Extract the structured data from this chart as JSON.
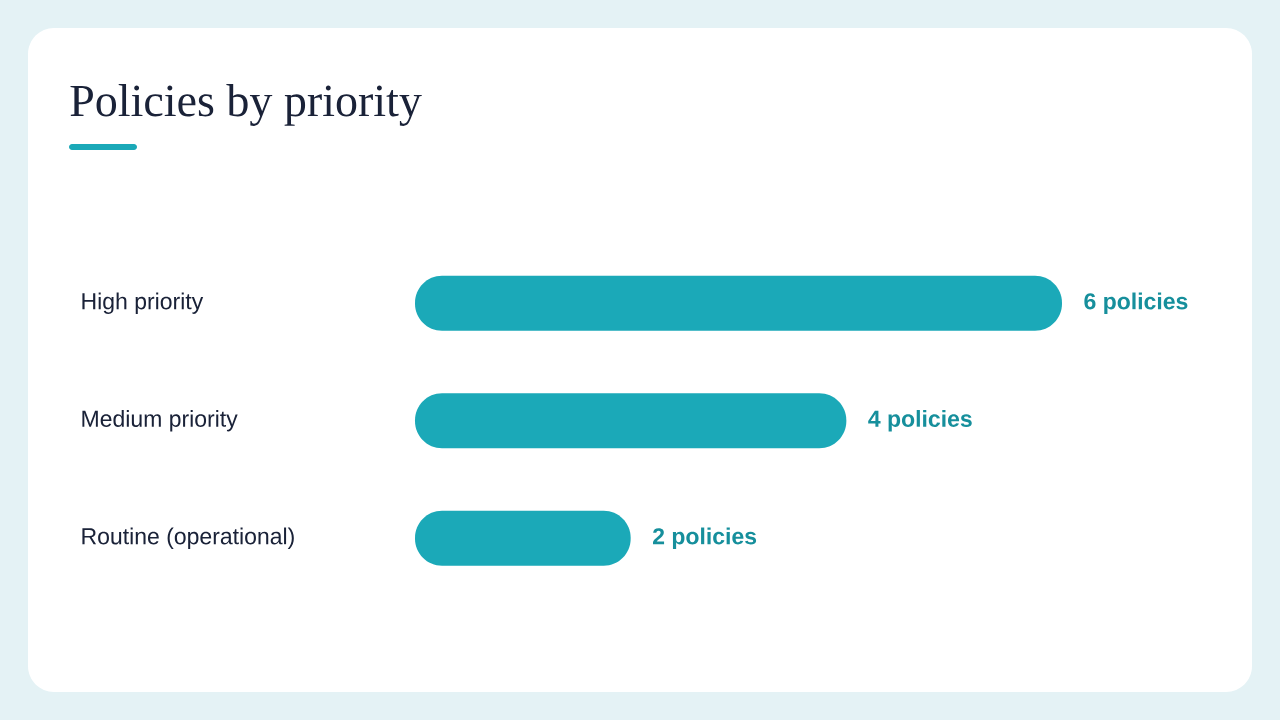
{
  "chart_data": {
    "type": "bar",
    "orientation": "horizontal",
    "title": "Policies by priority",
    "categories": [
      "High priority",
      "Medium priority",
      "Routine (operational)"
    ],
    "values": [
      6,
      4,
      2
    ],
    "value_labels": [
      "6 policies",
      "4 policies",
      "2 policies"
    ],
    "color": "#1ba9b8",
    "xlim": [
      0,
      6
    ],
    "tick_labels": "y"
  }
}
